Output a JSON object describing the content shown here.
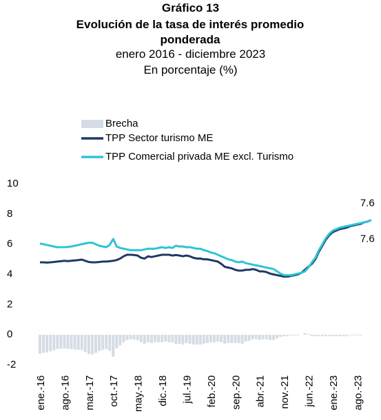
{
  "chart_data": {
    "type": "line",
    "title": "Gráfico 13",
    "subtitle": "Evolución de la tasa de interés promedio ponderada",
    "period": "enero 2016 - diciembre 2023",
    "unit": "En porcentaje (%)",
    "categories": [
      "ene.-16",
      null,
      null,
      null,
      null,
      null,
      null,
      "ago.-16",
      null,
      null,
      null,
      null,
      null,
      null,
      "mar.-17",
      null,
      null,
      null,
      null,
      null,
      null,
      "oct.-17",
      null,
      null,
      null,
      null,
      null,
      null,
      "may.-18",
      null,
      null,
      null,
      null,
      null,
      null,
      "dic.-18",
      null,
      null,
      null,
      null,
      null,
      null,
      "jul.-19",
      null,
      null,
      null,
      null,
      null,
      null,
      "feb.-20",
      null,
      null,
      null,
      null,
      null,
      null,
      "sep.-20",
      null,
      null,
      null,
      null,
      null,
      null,
      "abr.-21",
      null,
      null,
      null,
      null,
      null,
      null,
      "nov.-21",
      null,
      null,
      null,
      null,
      null,
      null,
      "jun.-22",
      null,
      null,
      null,
      null,
      null,
      null,
      "ene.-23",
      null,
      null,
      null,
      null,
      null,
      null,
      "ago.-23",
      null,
      null,
      null,
      null
    ],
    "series": [
      {
        "name": "Brecha",
        "kind": "bar",
        "color": "#d6dce5",
        "values": [
          -1.25,
          -1.2,
          -1.17,
          -1.1,
          -1.03,
          -0.95,
          -0.93,
          -0.9,
          -0.94,
          -0.95,
          -0.98,
          -1.0,
          -1.02,
          -1.15,
          -1.28,
          -1.3,
          -1.2,
          -1.08,
          -1.0,
          -0.95,
          -1.08,
          -1.45,
          -0.9,
          -0.7,
          -0.5,
          -0.35,
          -0.3,
          -0.32,
          -0.35,
          -0.5,
          -0.6,
          -0.5,
          -0.55,
          -0.5,
          -0.5,
          -0.5,
          -0.45,
          -0.5,
          -0.5,
          -0.62,
          -0.6,
          -0.65,
          -0.55,
          -0.6,
          -0.65,
          -0.65,
          -0.65,
          -0.6,
          -0.55,
          -0.5,
          -0.5,
          -0.45,
          -0.5,
          -0.6,
          -0.55,
          -0.55,
          -0.55,
          -0.55,
          -0.6,
          -0.45,
          -0.4,
          -0.3,
          -0.3,
          -0.35,
          -0.3,
          -0.3,
          -0.35,
          -0.35,
          -0.25,
          -0.15,
          -0.1,
          -0.1,
          -0.05,
          -0.05,
          -0.05,
          0,
          0.1,
          0.05,
          -0.1,
          -0.1,
          -0.1,
          -0.1,
          -0.1,
          -0.1,
          -0.1,
          -0.1,
          -0.1,
          -0.1,
          -0.1,
          -0.05,
          -0.05,
          -0.05,
          -0.05,
          0,
          0,
          0
        ]
      },
      {
        "name": "TPP Sector turismo ME",
        "kind": "line",
        "color": "#1f3864",
        "values": [
          4.8,
          4.8,
          4.78,
          4.8,
          4.82,
          4.85,
          4.87,
          4.9,
          4.88,
          4.9,
          4.92,
          4.95,
          4.98,
          4.9,
          4.82,
          4.8,
          4.8,
          4.82,
          4.85,
          4.85,
          4.87,
          4.9,
          4.95,
          5.05,
          5.2,
          5.3,
          5.3,
          5.28,
          5.25,
          5.1,
          5.05,
          5.2,
          5.15,
          5.2,
          5.25,
          5.3,
          5.3,
          5.3,
          5.25,
          5.28,
          5.25,
          5.2,
          5.25,
          5.2,
          5.1,
          5.05,
          5.05,
          5.0,
          5.0,
          4.95,
          4.9,
          4.85,
          4.7,
          4.5,
          4.45,
          4.4,
          4.3,
          4.25,
          4.25,
          4.3,
          4.3,
          4.35,
          4.3,
          4.2,
          4.2,
          4.15,
          4.05,
          4.0,
          3.95,
          3.9,
          3.85,
          3.85,
          3.9,
          3.95,
          4.0,
          4.1,
          4.3,
          4.5,
          4.7,
          5.0,
          5.5,
          5.9,
          6.3,
          6.6,
          6.8,
          6.9,
          7.0,
          7.05,
          7.1,
          7.2,
          7.25,
          7.3,
          7.35,
          7.45,
          7.5,
          7.6
        ]
      },
      {
        "name": "TPP Comercial privada ME excl. Turismo",
        "kind": "line",
        "color": "#2ec4d6",
        "values": [
          6.05,
          6.0,
          5.95,
          5.9,
          5.85,
          5.8,
          5.8,
          5.8,
          5.82,
          5.85,
          5.9,
          5.95,
          6.0,
          6.05,
          6.1,
          6.1,
          6.0,
          5.9,
          5.85,
          5.8,
          5.95,
          6.35,
          5.85,
          5.75,
          5.7,
          5.65,
          5.6,
          5.6,
          5.6,
          5.6,
          5.65,
          5.7,
          5.7,
          5.7,
          5.75,
          5.8,
          5.75,
          5.8,
          5.75,
          5.9,
          5.85,
          5.85,
          5.8,
          5.8,
          5.75,
          5.7,
          5.7,
          5.6,
          5.55,
          5.45,
          5.4,
          5.3,
          5.2,
          5.1,
          5.0,
          4.95,
          4.85,
          4.8,
          4.85,
          4.75,
          4.7,
          4.65,
          4.6,
          4.55,
          4.5,
          4.45,
          4.4,
          4.35,
          4.2,
          4.05,
          3.95,
          3.95,
          3.95,
          4.0,
          4.05,
          4.1,
          4.2,
          4.45,
          4.8,
          5.1,
          5.6,
          6.0,
          6.4,
          6.7,
          6.9,
          7.0,
          7.1,
          7.15,
          7.2,
          7.25,
          7.3,
          7.35,
          7.4,
          7.45,
          7.5,
          7.6
        ]
      }
    ],
    "ylim": [
      -2,
      10
    ],
    "yticks": [
      -2,
      0,
      2,
      4,
      6,
      8,
      10
    ],
    "grid": false,
    "legend": "top"
  }
}
